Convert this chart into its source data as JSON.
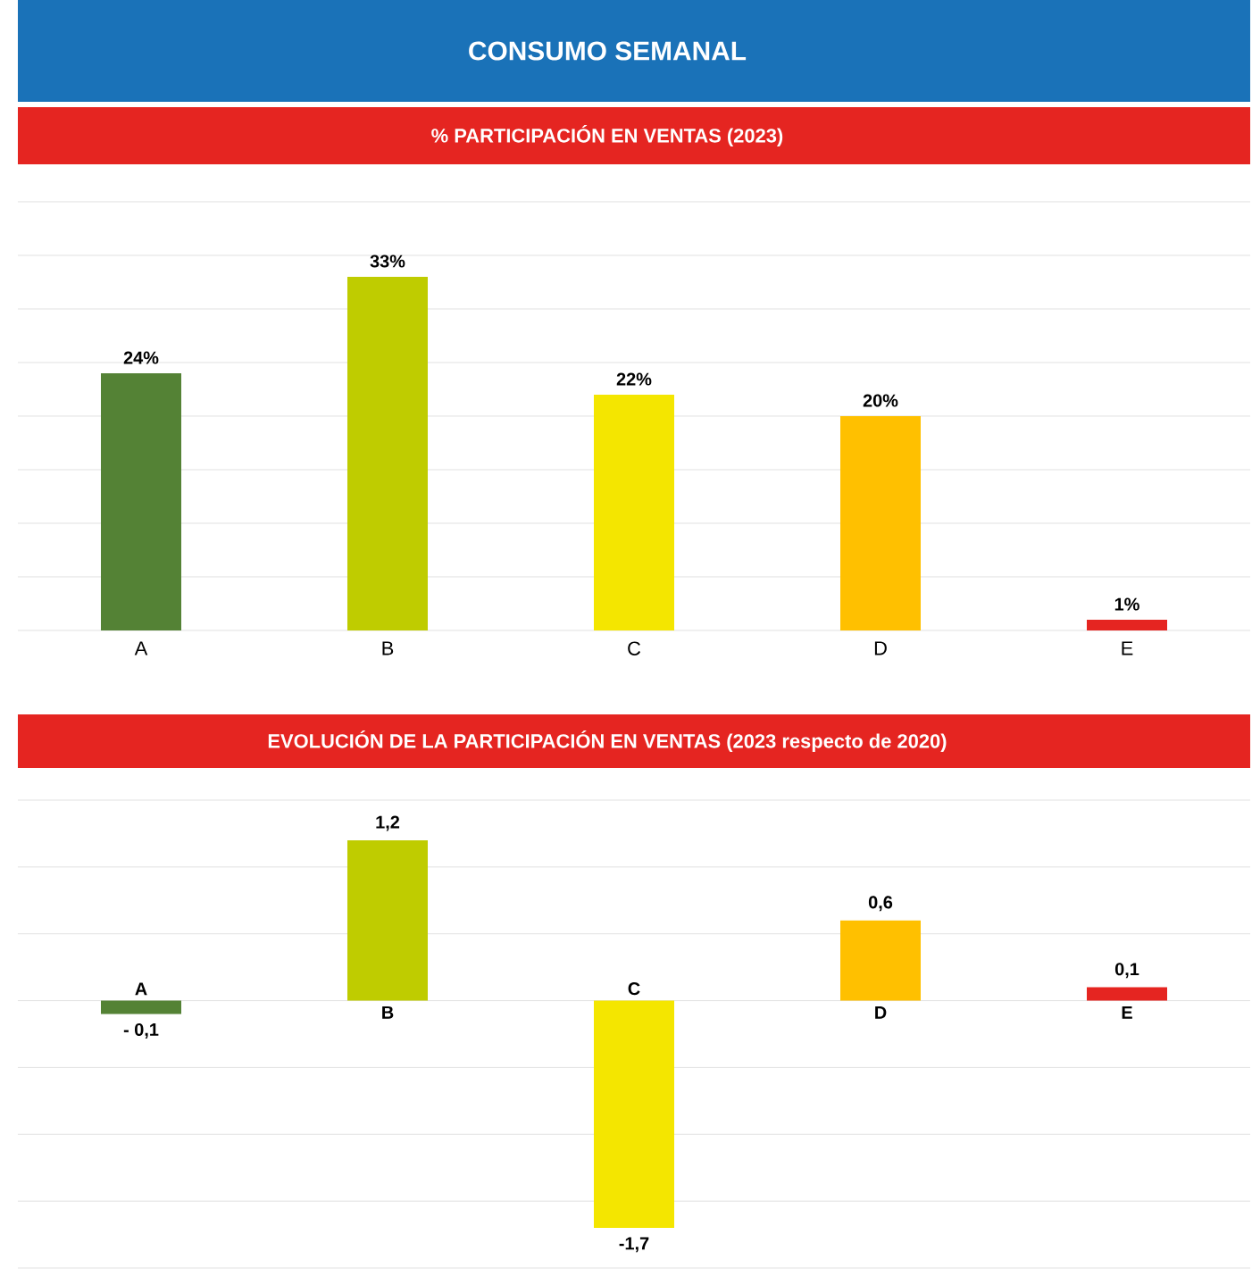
{
  "chart_data": [
    {
      "type": "bar",
      "title": "CONSUMO SEMANAL",
      "subtitle": "% PARTICIPACIÓN EN VENTAS (2023)",
      "categories": [
        "A",
        "B",
        "C",
        "D",
        "E"
      ],
      "values": [
        24,
        33,
        22,
        20,
        1
      ],
      "colors": [
        "#548235",
        "#bfcc00",
        "#f4e600",
        "#ffc000",
        "#e52521"
      ],
      "value_labels": [
        "24%",
        "33%",
        "22%",
        "20%",
        "1%"
      ],
      "ylim": [
        0,
        40
      ],
      "yticks": [
        {
          "value": 0,
          "label": null
        },
        {
          "value": 5,
          "label": null
        },
        {
          "value": 10,
          "label": null
        },
        {
          "value": 15,
          "label": null
        },
        {
          "value": 20,
          "label": null
        },
        {
          "value": 25,
          "label": null
        },
        {
          "value": 30,
          "label": null
        },
        {
          "value": 35,
          "label": null
        },
        {
          "value": 40,
          "label": null
        }
      ],
      "grid": "y",
      "tick_labels": "x"
    },
    {
      "type": "bar",
      "title": "EVOLUCIÓN DE LA PARTICIPACIÓN EN VENTAS (2023 respecto de 2020)",
      "categories": [
        "A",
        "B",
        "C",
        "D",
        "E"
      ],
      "values": [
        -0.1,
        1.2,
        -1.7,
        0.6,
        0.1
      ],
      "colors": [
        "#548235",
        "#bfcc00",
        "#f4e600",
        "#ffc000",
        "#e52521"
      ],
      "value_labels": [
        "- 0,1",
        "1,2",
        "-1,7",
        "0,6",
        "0,1"
      ],
      "ylim": [
        -2,
        1.5
      ],
      "yticks": [
        {
          "value": -2,
          "label": null
        },
        {
          "value": -1.5,
          "label": null
        },
        {
          "value": -1,
          "label": null
        },
        {
          "value": -0.5,
          "label": null
        },
        {
          "value": 0,
          "label": null
        },
        {
          "value": 0.5,
          "label": null
        },
        {
          "value": 1,
          "label": null
        },
        {
          "value": 1.5,
          "label": null
        }
      ],
      "grid": "y",
      "tick_labels": "x"
    }
  ]
}
